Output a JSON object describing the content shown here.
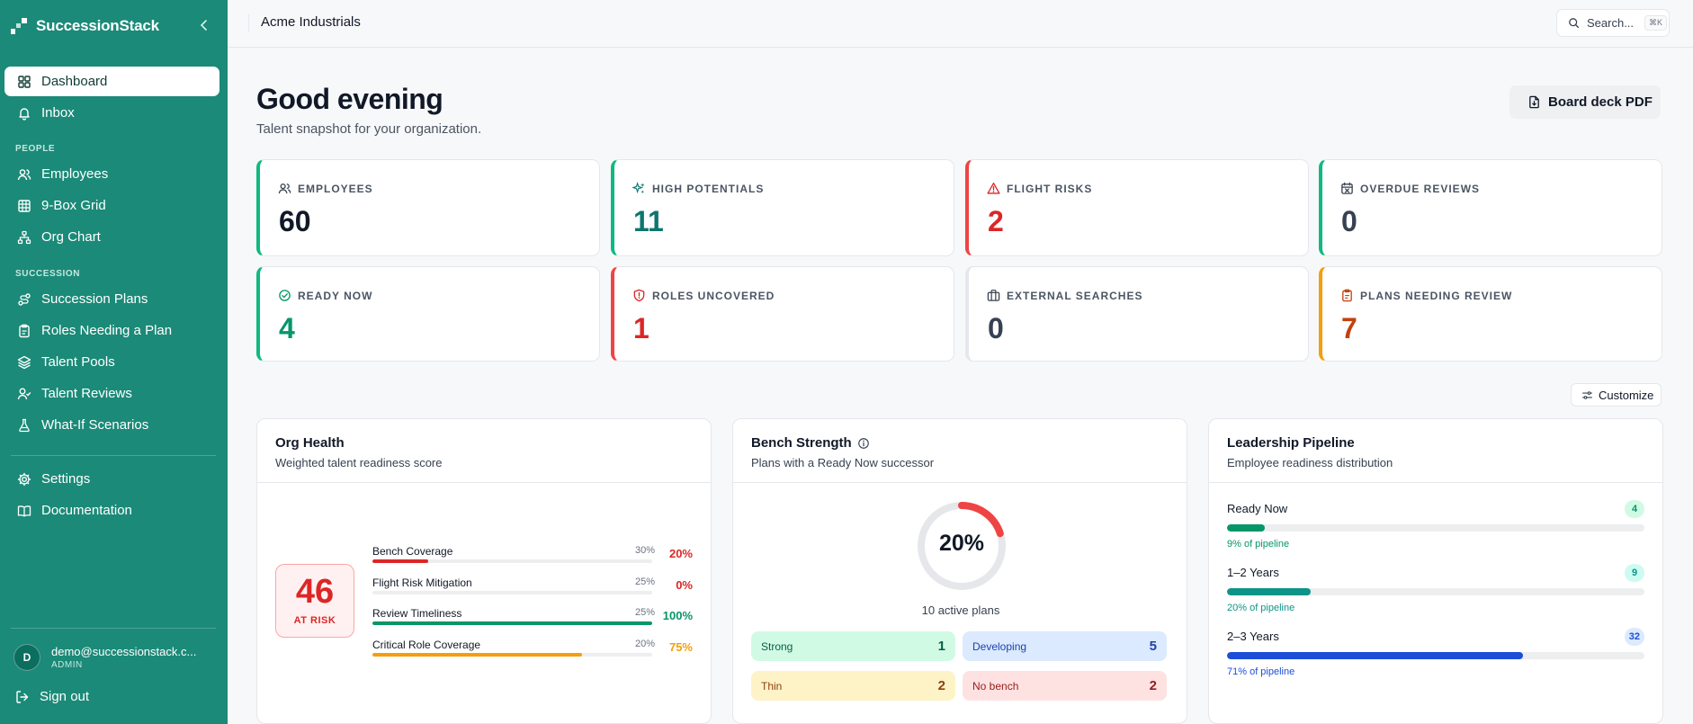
{
  "sidebar": {
    "brand": "SuccessionStack",
    "items": [
      {
        "label": "Dashboard"
      },
      {
        "label": "Inbox"
      },
      {
        "label": "Employees"
      },
      {
        "label": "9-Box Grid"
      },
      {
        "label": "Org Chart"
      },
      {
        "label": "Succession Plans"
      },
      {
        "label": "Roles Needing a Plan"
      },
      {
        "label": "Talent Pools"
      },
      {
        "label": "Talent Reviews"
      },
      {
        "label": "What-If Scenarios"
      },
      {
        "label": "Settings"
      },
      {
        "label": "Documentation"
      }
    ],
    "sections": {
      "people": "PEOPLE",
      "succession": "SUCCESSION"
    },
    "user": {
      "initial": "D",
      "email": "demo@successionstack.c...",
      "role": "ADMIN"
    },
    "signout": "Sign out"
  },
  "header": {
    "org": "Acme Industrials",
    "search_label": "Search...",
    "search_shortcut": "⌘K"
  },
  "page": {
    "greeting": "Good evening",
    "subtitle": "Talent snapshot for your organization.",
    "board_deck": "Board deck PDF",
    "customize": "Customize"
  },
  "stats": [
    {
      "label": "EMPLOYEES",
      "value": "60",
      "icon": "users-icon",
      "accent": "#10b981",
      "color": "#111827"
    },
    {
      "label": "HIGH POTENTIALS",
      "value": "11",
      "icon": "sparkles-icon",
      "accent": "#10b981",
      "color": "#0f766e"
    },
    {
      "label": "FLIGHT RISKS",
      "value": "2",
      "icon": "alert-triangle-icon",
      "accent": "#ef4444",
      "color": "#dc2626"
    },
    {
      "label": "OVERDUE REVIEWS",
      "value": "0",
      "icon": "calendar-x-icon",
      "accent": "#10b981",
      "color": "#374151"
    },
    {
      "label": "READY NOW",
      "value": "4",
      "icon": "check-circle-icon",
      "accent": "#10b981",
      "color": "#059669"
    },
    {
      "label": "ROLES UNCOVERED",
      "value": "1",
      "icon": "shield-alert-icon",
      "accent": "#ef4444",
      "color": "#dc2626"
    },
    {
      "label": "EXTERNAL SEARCHES",
      "value": "0",
      "icon": "briefcase-icon",
      "accent": "#e5e7eb",
      "color": "#374151"
    },
    {
      "label": "PLANS NEEDING REVIEW",
      "value": "7",
      "icon": "clipboard-icon",
      "accent": "#f59e0b",
      "color": "#c2410c"
    }
  ],
  "org_health": {
    "title": "Org Health",
    "subtitle": "Weighted talent readiness score",
    "score": "46",
    "status": "AT RISK",
    "metrics": [
      {
        "name": "Bench Coverage",
        "weight": "30%",
        "score": "20%",
        "fill": 0.2,
        "color": "#dc2626"
      },
      {
        "name": "Flight Risk Mitigation",
        "weight": "25%",
        "score": "0%",
        "fill": 0.0,
        "color": "#dc2626"
      },
      {
        "name": "Review Timeliness",
        "weight": "25%",
        "score": "100%",
        "fill": 1.0,
        "color": "#059669"
      },
      {
        "name": "Critical Role Coverage",
        "weight": "20%",
        "score": "75%",
        "fill": 0.75,
        "color": "#f59e0b"
      }
    ]
  },
  "bench": {
    "title": "Bench Strength",
    "subtitle": "Plans with a Ready Now successor",
    "percent": "20%",
    "percent_value": 0.2,
    "plans": "10 active plans",
    "tiers": [
      {
        "label": "Strong",
        "count": "1",
        "bg": "#d1fae5",
        "fg": "#065f46"
      },
      {
        "label": "Developing",
        "count": "5",
        "bg": "#dbeafe",
        "fg": "#1e40af"
      },
      {
        "label": "Thin",
        "count": "2",
        "bg": "#fef3c7",
        "fg": "#92400e"
      },
      {
        "label": "No bench",
        "count": "2",
        "bg": "#fee2e2",
        "fg": "#991b1b"
      }
    ]
  },
  "pipeline": {
    "title": "Leadership Pipeline",
    "subtitle": "Employee readiness distribution",
    "rows": [
      {
        "name": "Ready Now",
        "count": "4",
        "note": "9% of pipeline",
        "fill": 0.09,
        "color": "#059669",
        "badge_bg": "#d1fae5"
      },
      {
        "name": "1–2 Years",
        "count": "9",
        "note": "20% of pipeline",
        "fill": 0.2,
        "color": "#0d9488",
        "badge_bg": "#ccfbf1"
      },
      {
        "name": "2–3 Years",
        "count": "32",
        "note": "71% of pipeline",
        "fill": 0.71,
        "color": "#1d4ed8",
        "badge_bg": "#dbeafe"
      }
    ]
  }
}
